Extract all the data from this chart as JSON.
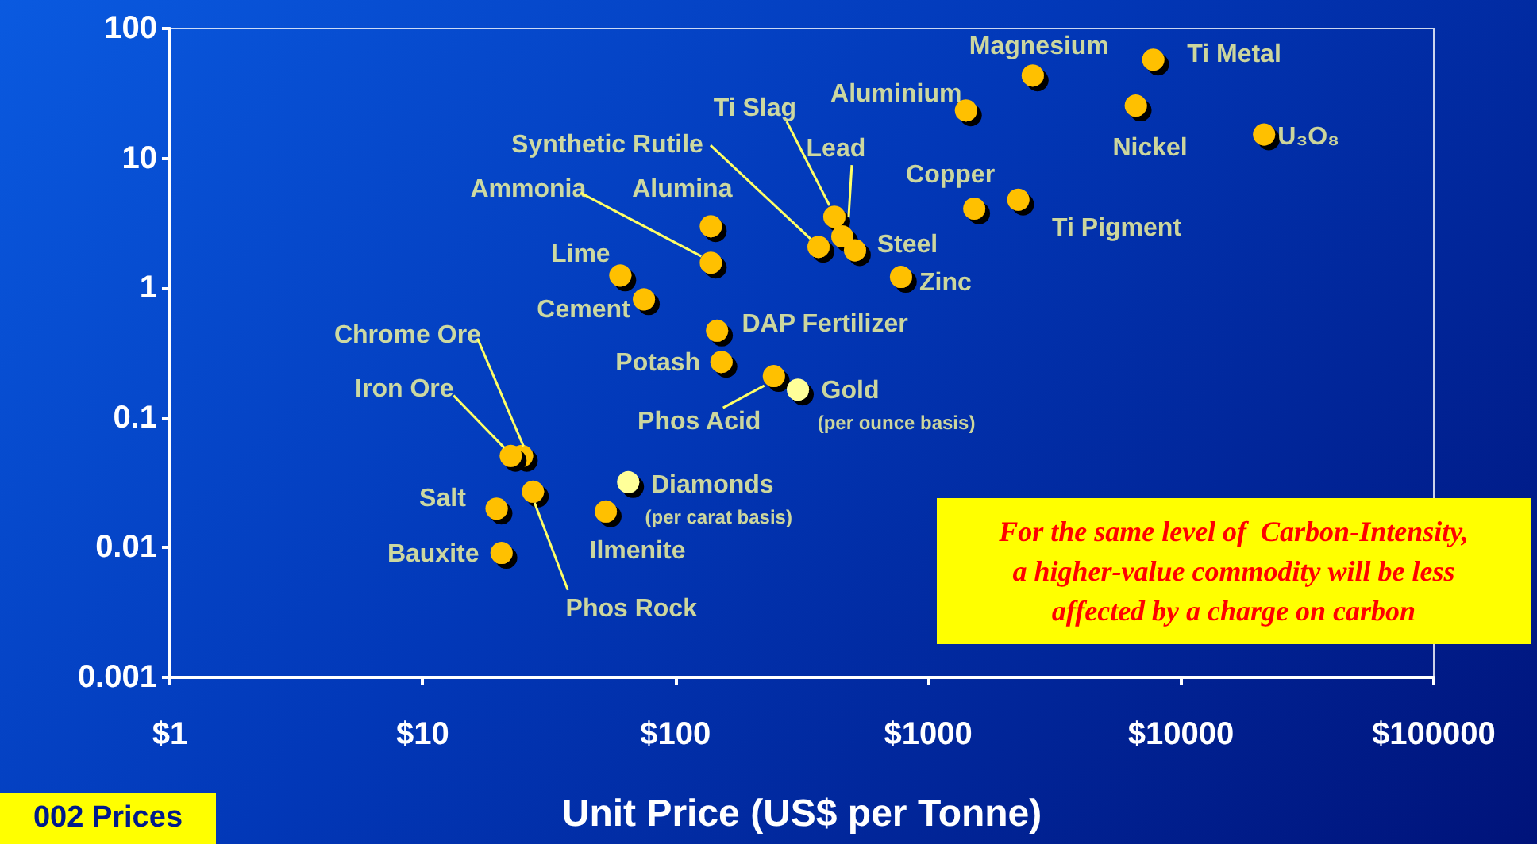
{
  "chart_data": {
    "type": "scatter",
    "xlabel": "Unit Price (US$ per Tonne)",
    "x": [
      2590,
      7760,
      1410,
      6620,
      21300,
      1520,
      2270,
      425,
      457,
      513,
      368,
      780,
      138,
      138,
      60.5,
      75,
      146,
      152,
      245,
      305,
      24.7,
      22.3,
      27.3,
      65,
      19.6,
      53,
      20.5
    ],
    "values": [
      43.5,
      57.6,
      23.4,
      25.5,
      15.3,
      4.1,
      4.8,
      3.55,
      2.5,
      1.96,
      2.08,
      1.22,
      3.0,
      1.57,
      1.25,
      0.82,
      0.47,
      0.27,
      0.21,
      0.165,
      0.051,
      0.051,
      0.027,
      0.032,
      0.02,
      0.019,
      0.0091
    ],
    "colors": [
      "#ffc000",
      "#ffc000",
      "#ffc000",
      "#ffc000",
      "#ffc000",
      "#ffc000",
      "#ffc000",
      "#ffc000",
      "#ffc000",
      "#ffc000",
      "#ffc000",
      "#ffc000",
      "#ffc000",
      "#ffc000",
      "#ffc000",
      "#ffc000",
      "#ffc000",
      "#ffc000",
      "#ffc000",
      "#ffff99",
      "#ffc000",
      "#ffc000",
      "#ffc000",
      "#ffff99",
      "#ffc000",
      "#ffc000",
      "#ffc000"
    ],
    "marker": "circle",
    "log": "xy",
    "xlim": [
      1,
      100000
    ],
    "ylim": [
      0.001,
      100
    ],
    "xticks": [
      {
        "value": 1,
        "label": "$1"
      },
      {
        "value": 10,
        "label": "$10"
      },
      {
        "value": 100,
        "label": "$100"
      },
      {
        "value": 1000,
        "label": "$1000"
      },
      {
        "value": 10000,
        "label": "$10000"
      },
      {
        "value": 100000,
        "label": "$100000"
      }
    ],
    "yticks": [
      0.001,
      0.01,
      0.1,
      1,
      10,
      100
    ],
    "annotations": [
      {
        "text": "Magnesium",
        "x": 2590,
        "y": 43.5
      },
      {
        "text": "Ti Metal",
        "x": 7760,
        "y": 57.6
      },
      {
        "text": "Aluminium",
        "x": 1410,
        "y": 23.4
      },
      {
        "text": "Nickel",
        "x": 6620,
        "y": 25.5
      },
      {
        "text": "U₃O₈",
        "x": 21300,
        "y": 15.3
      },
      {
        "text": "Copper",
        "x": 1520,
        "y": 4.1
      },
      {
        "text": "Ti Pigment",
        "x": 2270,
        "y": 4.8
      },
      {
        "text": "Ti Slag",
        "x": 425,
        "y": 3.55
      },
      {
        "text": "Lead",
        "x": 457,
        "y": 2.5
      },
      {
        "text": "Steel",
        "x": 513,
        "y": 1.96
      },
      {
        "text": "Synthetic Rutile",
        "x": 368,
        "y": 2.08
      },
      {
        "text": "Zinc",
        "x": 780,
        "y": 1.22
      },
      {
        "text": "Alumina",
        "x": 138,
        "y": 3.0
      },
      {
        "text": "Ammonia",
        "x": 138,
        "y": 1.57
      },
      {
        "text": "Lime",
        "x": 60.5,
        "y": 1.25
      },
      {
        "text": "Cement",
        "x": 75,
        "y": 0.82
      },
      {
        "text": "DAP Fertilizer",
        "x": 146,
        "y": 0.47
      },
      {
        "text": "Potash",
        "x": 152,
        "y": 0.27
      },
      {
        "text": "Phos Acid",
        "x": 245,
        "y": 0.21
      },
      {
        "text": "Gold",
        "x": 305,
        "y": 0.165
      },
      {
        "text": "(per ounce basis)",
        "x": 305,
        "y": 0.165
      },
      {
        "text": "Chrome Ore",
        "x": 24.7,
        "y": 0.051
      },
      {
        "text": "Iron Ore",
        "x": 22.3,
        "y": 0.051
      },
      {
        "text": "Phos Rock",
        "x": 27.3,
        "y": 0.027
      },
      {
        "text": "Diamonds",
        "x": 65,
        "y": 0.032
      },
      {
        "text": "(per carat basis)",
        "x": 65,
        "y": 0.032
      },
      {
        "text": "Salt",
        "x": 19.6,
        "y": 0.02
      },
      {
        "text": "Ilmenite",
        "x": 53,
        "y": 0.019
      },
      {
        "text": "Bauxite",
        "x": 20.5,
        "y": 0.0091
      },
      "For the same level of  Carbon-Intensity,\na higher-value commodity will be less\naffected by a charge on carbon",
      "002 Prices"
    ]
  }
}
